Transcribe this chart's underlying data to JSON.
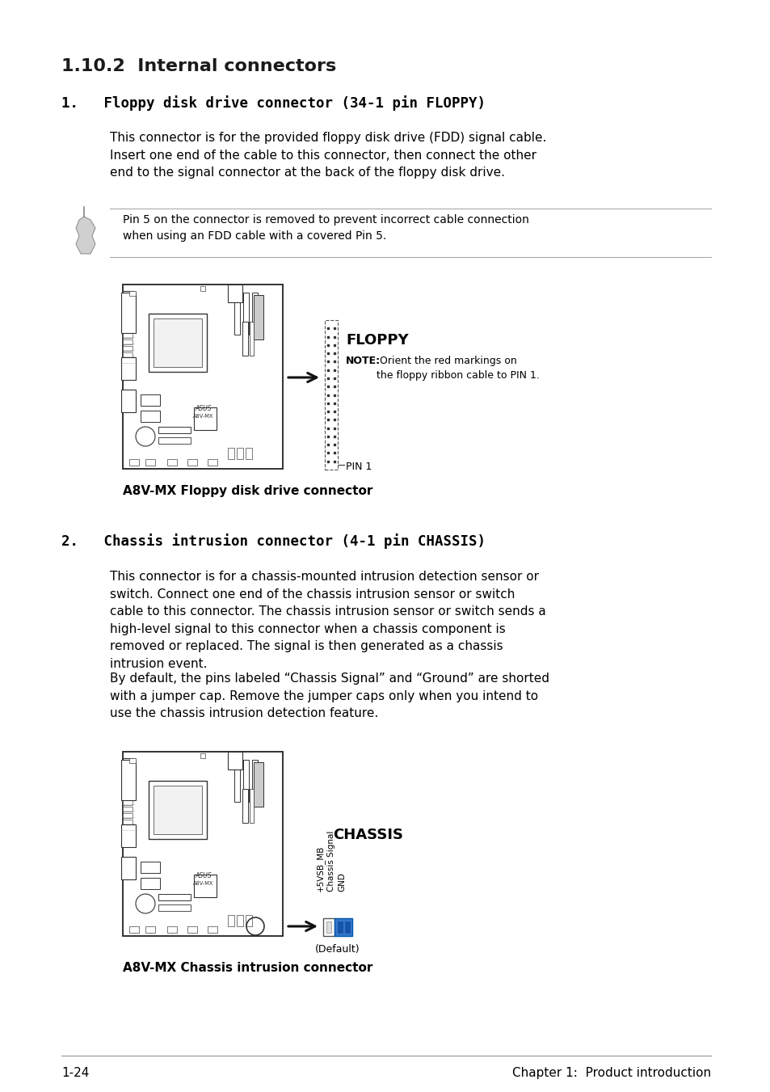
{
  "bg_color": "#ffffff",
  "text_color": "#000000",
  "title_section": "1.10.2  Internal connectors",
  "section1_heading": "1.   Floppy disk drive connector (34-1 pin FLOPPY)",
  "section1_body1": "This connector is for the provided floppy disk drive (FDD) signal cable.\nInsert one end of the cable to this connector, then connect the other\nend to the signal connector at the back of the floppy disk drive.",
  "note_text": "Pin 5 on the connector is removed to prevent incorrect cable connection\nwhen using an FDD cable with a covered Pin 5.",
  "floppy_label": "FLOPPY",
  "floppy_note_bold": "NOTE:",
  "floppy_note_rest": " Orient the red markings on\nthe floppy ribbon cable to PIN 1.",
  "pin1_label": "PIN 1",
  "fig1_caption": "A8V-MX Floppy disk drive connector",
  "section2_heading": "2.   Chassis intrusion connector (4-1 pin CHASSIS)",
  "section2_body1": "This connector is for a chassis-mounted intrusion detection sensor or\nswitch. Connect one end of the chassis intrusion sensor or switch\ncable to this connector. The chassis intrusion sensor or switch sends a\nhigh-level signal to this connector when a chassis component is\nremoved or replaced. The signal is then generated as a chassis\nintrusion event.",
  "section2_body2": "By default, the pins labeled “Chassis Signal” and “Ground” are shorted\nwith a jumper cap. Remove the jumper caps only when you intend to\nuse the chassis intrusion detection feature.",
  "chassis_label": "CHASSIS",
  "chassis_signals": [
    "+5VSB_MB",
    "Chassis Signal",
    "GND"
  ],
  "default_label": "(Default)",
  "fig2_caption": "A8V-MX Chassis intrusion connector",
  "footer_left": "1-24",
  "footer_right": "Chapter 1:  Product introduction"
}
